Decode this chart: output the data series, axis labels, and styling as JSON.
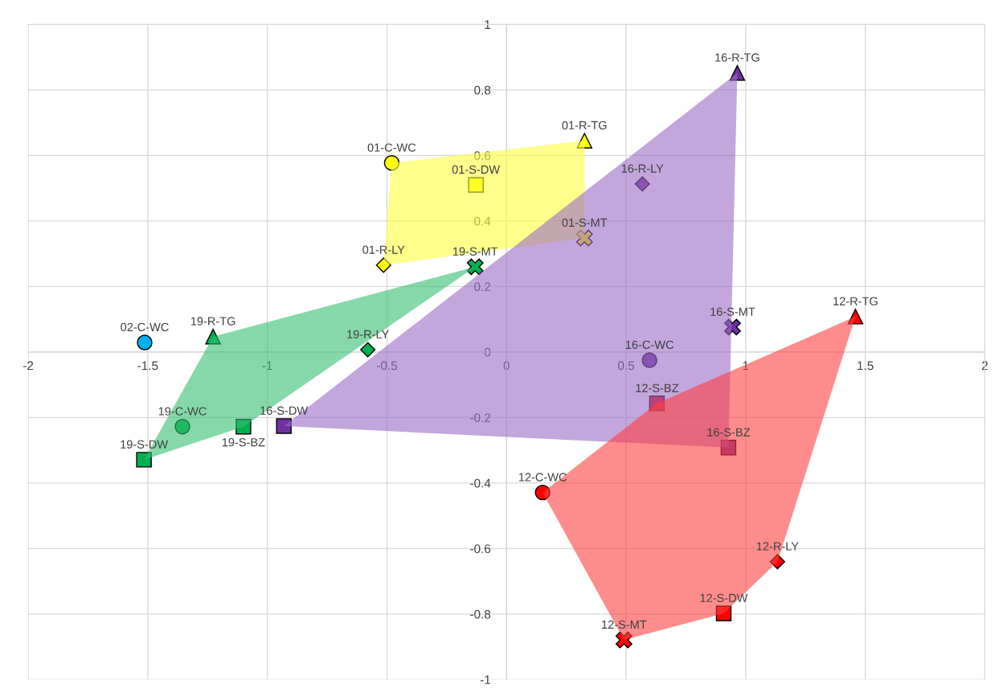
{
  "chart_data": {
    "type": "scatter",
    "xlim": [
      -2,
      2
    ],
    "ylim": [
      -1,
      1
    ],
    "xticks": [
      -2,
      -1.5,
      -1,
      -0.5,
      0,
      0.5,
      1,
      1.5,
      2
    ],
    "yticks": [
      -1,
      -0.8,
      -0.6,
      -0.4,
      -0.2,
      0,
      0.2,
      0.4,
      0.6,
      0.8,
      1
    ],
    "grid": true,
    "legend": false,
    "series": [
      {
        "name": "01-C-WC",
        "color": "#ffff00",
        "marker": "circle",
        "x": [
          -0.48
        ],
        "values": [
          0.577
        ]
      },
      {
        "name": "01-R-TG",
        "color": "#ffff00",
        "marker": "triangle",
        "x": [
          0.326
        ],
        "values": [
          0.645
        ]
      },
      {
        "name": "01-S-DW",
        "color": "#ffff00",
        "marker": "square",
        "x": [
          -0.128
        ],
        "values": [
          0.51
        ]
      },
      {
        "name": "01-S-MT",
        "color": "#ffff00",
        "marker": "cross",
        "x": [
          0.326
        ],
        "values": [
          0.348
        ]
      },
      {
        "name": "01-R-LY",
        "color": "#ffff00",
        "marker": "diamond",
        "x": [
          -0.514
        ],
        "values": [
          0.265
        ]
      },
      {
        "name": "16-R-TG",
        "color": "#7030a0",
        "marker": "triangle",
        "x": [
          0.965
        ],
        "values": [
          0.852
        ]
      },
      {
        "name": "16-R-LY",
        "color": "#7030a0",
        "marker": "diamond",
        "x": [
          0.568
        ],
        "values": [
          0.513
        ]
      },
      {
        "name": "16-S-MT",
        "color": "#7030a0",
        "marker": "cross",
        "x": [
          0.945
        ],
        "values": [
          0.076
        ]
      },
      {
        "name": "16-C-WC",
        "color": "#7030a0",
        "marker": "circle",
        "x": [
          0.598
        ],
        "values": [
          -0.025
        ]
      },
      {
        "name": "16-S-BZ",
        "color": "#7030a0",
        "marker": "square",
        "x": [
          0.928
        ],
        "values": [
          -0.292
        ]
      },
      {
        "name": "16-S-DW",
        "color": "#7030a0",
        "marker": "square",
        "x": [
          -0.931
        ],
        "values": [
          -0.226
        ]
      },
      {
        "name": "19-S-MT",
        "color": "#00b050",
        "marker": "cross",
        "x": [
          -0.131
        ],
        "values": [
          0.26
        ]
      },
      {
        "name": "19-R-TG",
        "color": "#00b050",
        "marker": "triangle",
        "x": [
          -1.227
        ],
        "values": [
          0.047
        ]
      },
      {
        "name": "19-R-LY",
        "color": "#00b050",
        "marker": "diamond",
        "x": [
          -0.58
        ],
        "values": [
          0.007
        ]
      },
      {
        "name": "19-C-WC",
        "color": "#00b050",
        "marker": "circle",
        "x": [
          -1.355
        ],
        "values": [
          -0.228
        ]
      },
      {
        "name": "19-S-BZ",
        "color": "#00b050",
        "marker": "square",
        "x": [
          -1.1
        ],
        "values": [
          -0.228
        ]
      },
      {
        "name": "19-S-DW",
        "color": "#00b050",
        "marker": "square",
        "x": [
          -1.516
        ],
        "values": [
          -0.329
        ]
      },
      {
        "name": "02-C-WC",
        "color": "#00b0f0",
        "marker": "circle",
        "x": [
          -1.513
        ],
        "values": [
          0.029
        ]
      },
      {
        "name": "12-R-TG",
        "color": "#ff0000",
        "marker": "triangle",
        "x": [
          1.459
        ],
        "values": [
          0.108
        ]
      },
      {
        "name": "12-S-BZ",
        "color": "#ff0000",
        "marker": "square",
        "x": [
          0.629
        ],
        "values": [
          -0.157
        ]
      },
      {
        "name": "12-C-WC",
        "color": "#ff0000",
        "marker": "circle",
        "x": [
          0.151
        ],
        "values": [
          -0.429
        ]
      },
      {
        "name": "12-R-LY",
        "color": "#ff0000",
        "marker": "diamond",
        "x": [
          1.133
        ],
        "values": [
          -0.64
        ]
      },
      {
        "name": "12-S-DW",
        "color": "#ff0000",
        "marker": "square",
        "x": [
          0.908
        ],
        "values": [
          -0.798
        ]
      },
      {
        "name": "12-S-MT",
        "color": "#ff0000",
        "marker": "cross",
        "x": [
          0.491
        ],
        "values": [
          -0.879
        ]
      },
      {
        "type": "area",
        "color": "#ffff40",
        "x": [
          -0.48,
          0.326,
          0.326,
          -0.514
        ],
        "values": [
          0.577,
          0.645,
          0.348,
          0.265
        ]
      },
      {
        "type": "area",
        "color": "#9b6bc4",
        "x": [
          -0.931,
          0.965,
          0.928
        ],
        "values": [
          -0.226,
          0.852,
          -0.292
        ]
      },
      {
        "type": "area",
        "color": "#33c070",
        "x": [
          -1.516,
          -1.227,
          -0.131,
          -1.1
        ],
        "values": [
          -0.329,
          0.047,
          0.26,
          -0.228
        ]
      },
      {
        "type": "area",
        "color": "#ff4040",
        "x": [
          0.151,
          0.629,
          1.459,
          1.133,
          0.908,
          0.491
        ],
        "values": [
          -0.429,
          -0.157,
          0.108,
          -0.64,
          -0.798,
          -0.879
        ]
      }
    ]
  }
}
